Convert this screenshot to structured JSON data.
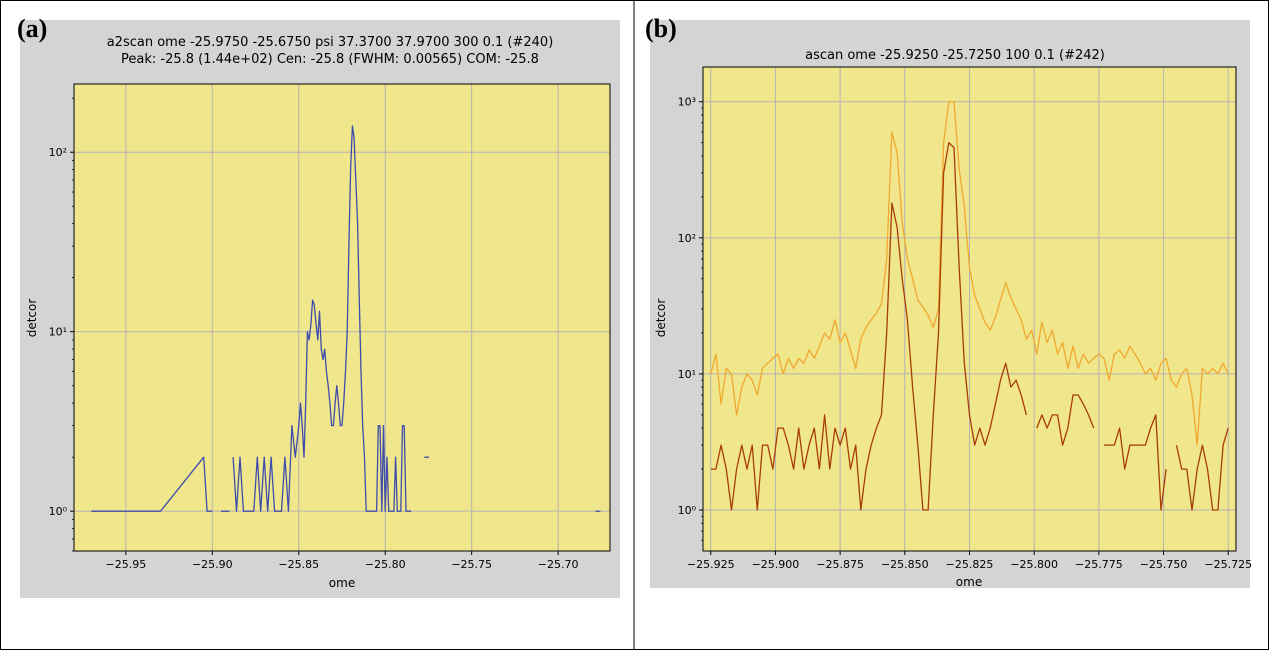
{
  "panels": [
    {
      "label": "(a)"
    },
    {
      "label": "(b)"
    }
  ],
  "colors": {
    "plot_bg": "#f0e68c",
    "figure_bg": "#d4d4d4",
    "grid": "#b4b4b4",
    "series_a": "#3e4cab",
    "series_b_light": "#f0a830",
    "series_b_dark": "#a83c06"
  },
  "chart_data": [
    {
      "type": "line",
      "title": "a2scan ome -25.9750 -25.6750 psi 37.3700 37.9700 300 0.1 (#240)",
      "subtitle": "Peak: -25.8 (1.44e+02)  Cen: -25.8 (FWHM: 0.00565)  COM: -25.8",
      "xlabel": "ome",
      "ylabel": "detcor",
      "xlim": [
        -25.98,
        -25.67
      ],
      "ylim": [
        0.6,
        240
      ],
      "yscale": "log",
      "grid": true,
      "xticks": [
        -25.95,
        -25.9,
        -25.85,
        -25.8,
        -25.75,
        -25.7
      ],
      "xtick_labels": [
        "−25.95",
        "−25.90",
        "−25.85",
        "−25.80",
        "−25.75",
        "−25.70"
      ],
      "yticks": [
        1,
        10,
        100
      ],
      "ytick_labels": [
        "10⁰",
        "10¹",
        "10²"
      ],
      "series": [
        {
          "x": [
            -25.97,
            -25.955,
            -25.948,
            -25.938,
            -25.93,
            -25.905,
            -25.903,
            -25.9,
            null,
            -25.895,
            -25.89,
            null,
            -25.888,
            -25.886,
            -25.884,
            -25.882,
            -25.88,
            -25.878,
            -25.876,
            -25.874,
            -25.872,
            -25.87,
            -25.868,
            -25.866,
            -25.864,
            -25.862,
            -25.86,
            -25.858,
            -25.856,
            -25.854,
            -25.852,
            -25.85,
            -25.849,
            -25.848,
            -25.847,
            -25.846,
            -25.845,
            -25.844,
            -25.843,
            -25.842,
            -25.841,
            -25.84,
            -25.839,
            -25.838,
            -25.837,
            -25.836,
            -25.835,
            -25.834,
            -25.833,
            -25.832,
            -25.831,
            -25.83,
            -25.829,
            -25.828,
            -25.827,
            -25.826,
            -25.825,
            -25.824,
            -25.823,
            -25.822,
            -25.821,
            -25.82,
            -25.819,
            -25.818,
            -25.817,
            -25.816,
            -25.815,
            -25.814,
            -25.813,
            -25.812,
            -25.811,
            -25.81,
            -25.809,
            -25.808,
            -25.807,
            -25.806,
            -25.805,
            -25.804,
            -25.803,
            -25.802,
            -25.801,
            -25.8,
            -25.799,
            -25.798,
            -25.797,
            -25.796,
            -25.795,
            -25.794,
            -25.793,
            -25.792,
            -25.791,
            -25.79,
            -25.789,
            -25.788,
            -25.787,
            -25.786,
            -25.785,
            null,
            -25.776,
            null,
            -25.677
          ],
          "y": [
            1,
            1,
            1,
            1,
            1,
            2,
            1,
            1,
            null,
            1,
            1,
            null,
            2,
            1,
            2,
            1,
            1,
            1,
            1,
            2,
            1,
            2,
            1,
            2,
            1,
            1,
            1,
            2,
            1,
            3,
            2,
            3,
            4,
            3,
            2,
            4,
            10,
            9,
            11,
            15,
            14,
            11,
            9,
            13,
            8,
            7,
            8,
            6,
            5,
            4,
            3,
            3,
            4,
            5,
            4,
            3,
            3,
            4,
            6,
            10,
            30,
            80,
            140,
            120,
            70,
            40,
            15,
            6,
            3,
            2,
            1,
            1,
            1,
            1,
            1,
            1,
            1,
            3,
            3,
            1,
            3,
            1,
            2,
            1,
            1,
            1,
            1,
            2,
            1,
            1,
            1,
            3,
            3,
            1,
            1,
            1,
            1,
            null,
            2,
            null,
            1
          ]
        }
      ]
    },
    {
      "type": "line",
      "title": "ascan ome -25.9250 -25.7250 100 0.1 (#242)",
      "xlabel": "ome",
      "ylabel": "detcor",
      "xlim": [
        -25.928,
        -25.722
      ],
      "ylim": [
        0.5,
        1800
      ],
      "yscale": "log",
      "grid": true,
      "xticks": [
        -25.925,
        -25.9,
        -25.875,
        -25.85,
        -25.825,
        -25.8,
        -25.775,
        -25.75,
        -25.725
      ],
      "xtick_labels": [
        "−25.925",
        "−25.900",
        "−25.875",
        "−25.850",
        "−25.825",
        "−25.800",
        "−25.775",
        "−25.750",
        "−25.725"
      ],
      "yticks": [
        1,
        10,
        100,
        1000
      ],
      "ytick_labels": [
        "10⁰",
        "10¹",
        "10²",
        "10³"
      ],
      "series": [
        {
          "color_key": "series_b_light",
          "x_start": -25.925,
          "x_step": 0.002,
          "y": [
            10,
            14,
            6,
            11,
            10,
            5,
            8,
            10,
            9,
            7,
            11,
            12,
            13,
            14,
            10,
            13,
            11,
            13,
            12,
            15,
            13,
            16,
            20,
            18,
            25,
            17,
            20,
            15,
            11,
            18,
            22,
            25,
            28,
            33,
            70,
            600,
            420,
            130,
            70,
            50,
            35,
            31,
            27,
            22,
            30,
            500,
            1000,
            1000,
            320,
            170,
            60,
            38,
            30,
            24,
            21,
            26,
            35,
            47,
            36,
            30,
            25,
            18,
            21,
            14,
            24,
            17,
            21,
            14,
            17,
            11,
            16,
            11,
            14,
            12,
            13,
            14,
            13,
            9,
            14,
            15,
            13,
            16,
            14,
            12,
            10,
            11,
            9,
            12,
            13,
            9,
            8,
            10,
            11,
            7,
            3,
            11,
            10,
            11,
            10,
            12,
            10
          ]
        },
        {
          "color_key": "series_b_dark",
          "x_start": -25.925,
          "x_step": 0.002,
          "y": [
            2,
            2,
            3,
            2,
            1,
            2,
            3,
            2,
            3,
            1,
            3,
            3,
            2,
            4,
            4,
            3,
            2,
            4,
            2,
            3,
            4,
            2,
            5,
            2,
            4,
            3,
            4,
            2,
            3,
            1,
            2,
            3,
            4,
            5,
            20,
            180,
            120,
            50,
            25,
            8,
            3,
            1,
            1,
            5,
            20,
            300,
            500,
            460,
            60,
            12,
            5,
            3,
            4,
            3,
            4,
            6,
            9,
            12,
            8,
            9,
            7,
            5,
            null,
            4,
            5,
            4,
            5,
            5,
            3,
            4,
            7,
            7,
            6,
            5,
            4,
            null,
            3,
            3,
            3,
            4,
            2,
            3,
            3,
            3,
            3,
            4,
            5,
            1,
            2,
            null,
            3,
            2,
            2,
            1,
            2,
            3,
            2,
            1,
            1,
            3,
            4
          ]
        }
      ]
    }
  ]
}
